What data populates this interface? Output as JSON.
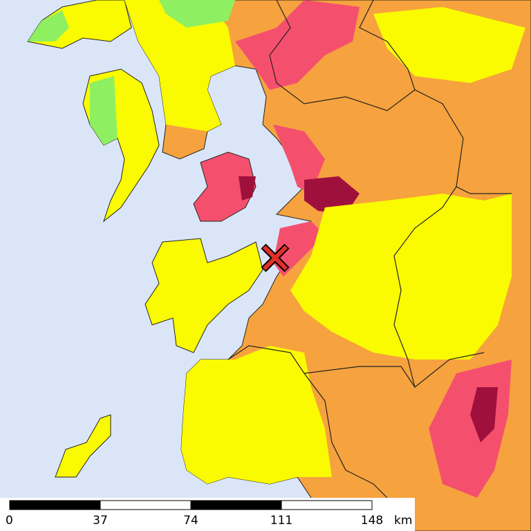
{
  "scale_bar": {
    "ticks": [
      0,
      37,
      74,
      111,
      148
    ],
    "unit": "km"
  }
}
